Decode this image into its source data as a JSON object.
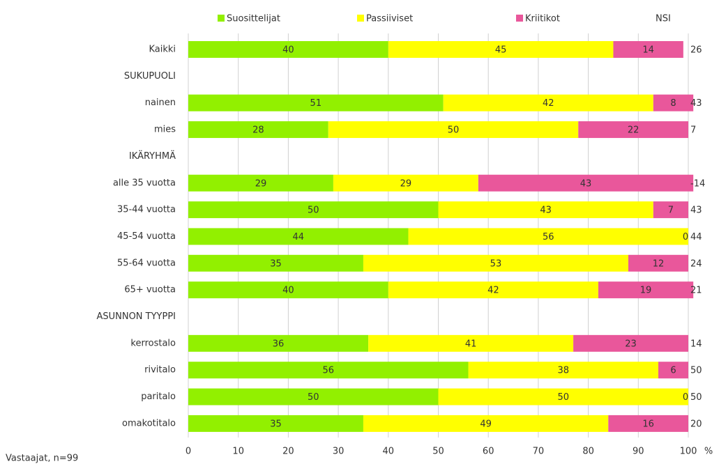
{
  "chart_data": {
    "type": "stacked-barh",
    "categories": [
      "Kaikki",
      "SUKUPUOLI",
      "nainen",
      "mies",
      "IKÄRYHMÄ",
      "alle 35 vuotta",
      "35-44 vuotta",
      "45-54 vuotta",
      "55-64 vuotta",
      "65+ vuotta",
      "ASUNNON TYYPPI",
      "kerrostalo",
      "rivitalo",
      "paritalo",
      "omakotitalo"
    ],
    "series": [
      {
        "name": "Suosittelijat",
        "color": "#92f000",
        "values": [
          40,
          null,
          51,
          28,
          null,
          29,
          50,
          44,
          35,
          40,
          null,
          36,
          56,
          50,
          35
        ]
      },
      {
        "name": "Passiiviset",
        "color": "#ffff00",
        "values": [
          45,
          null,
          42,
          50,
          null,
          29,
          43,
          56,
          53,
          42,
          null,
          41,
          38,
          50,
          49
        ]
      },
      {
        "name": "Kriitikot",
        "color": "#e9579b",
        "values": [
          14,
          null,
          8,
          22,
          null,
          43,
          7,
          0,
          12,
          19,
          null,
          23,
          6,
          0,
          16
        ]
      }
    ],
    "nsi": {
      "name": "NSI",
      "values": [
        26,
        null,
        43,
        7,
        null,
        -14,
        43,
        44,
        24,
        21,
        null,
        14,
        50,
        50,
        20
      ]
    },
    "xlim": [
      0,
      100
    ],
    "xticks": [
      0,
      10,
      20,
      30,
      40,
      50,
      60,
      70,
      80,
      90,
      100
    ],
    "x_unit": "%",
    "grid": true,
    "footnote": "Vastaajat, n=99"
  }
}
